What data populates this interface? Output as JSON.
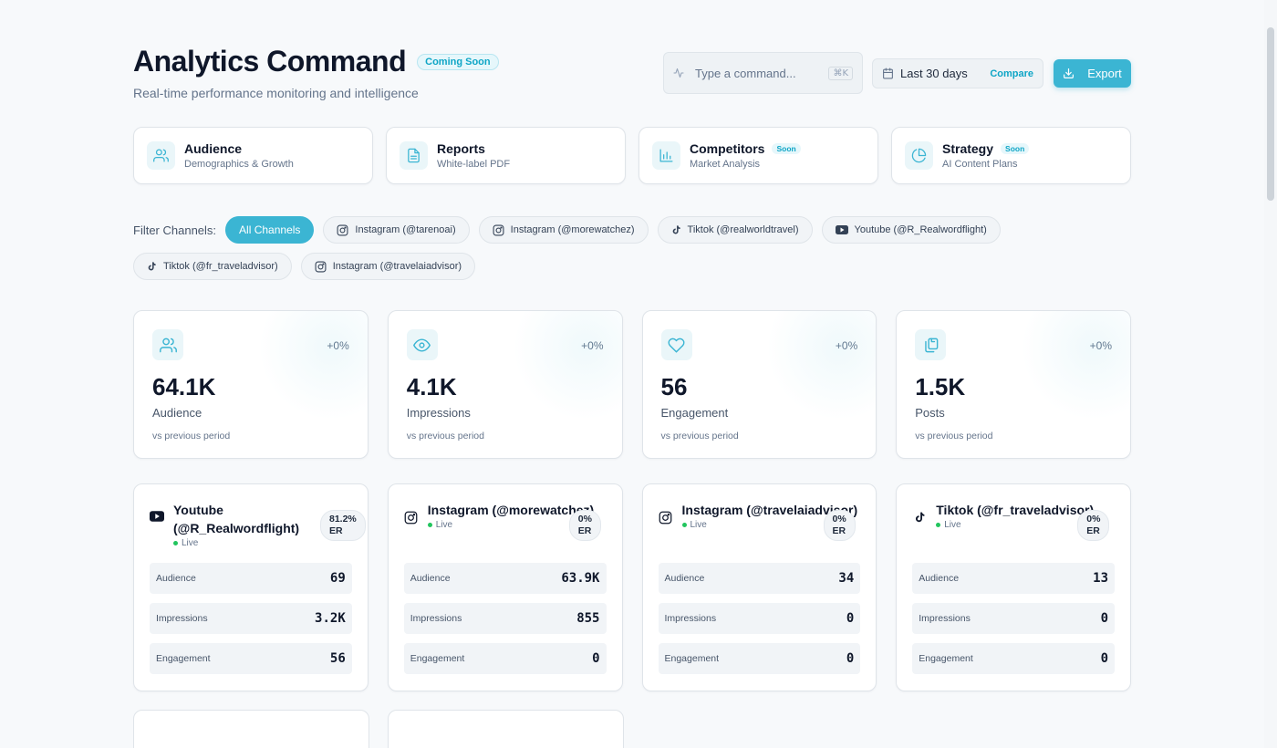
{
  "header": {
    "title": "Analytics Command",
    "badge": "Coming Soon",
    "subtitle": "Real-time performance monitoring and intelligence",
    "command_placeholder": "Type a command...",
    "command_shortcut": "⌘K",
    "date_range": "Last 30 days",
    "compare_label": "Compare",
    "export_label": "Export"
  },
  "nav_cards": [
    {
      "title": "Audience",
      "subtitle": "Demographics & Growth",
      "badge": "",
      "icon": "users-icon"
    },
    {
      "title": "Reports",
      "subtitle": "White-label PDF",
      "badge": "",
      "icon": "document-icon"
    },
    {
      "title": "Competitors",
      "subtitle": "Market Analysis",
      "badge": "Soon",
      "icon": "bar-chart-icon"
    },
    {
      "title": "Strategy",
      "subtitle": "AI Content Plans",
      "badge": "Soon",
      "icon": "pie-chart-icon"
    }
  ],
  "filters": {
    "label": "Filter Channels:",
    "chips": [
      {
        "label": "All Channels",
        "active": true
      },
      {
        "label": "Instagram (@tarenoai)",
        "icon": "instagram-icon"
      },
      {
        "label": "Instagram (@morewatchez)",
        "icon": "instagram-icon"
      },
      {
        "label": "Tiktok (@realworldtravel)",
        "icon": "tiktok-icon"
      },
      {
        "label": "Youtube (@R_Realwordflight)",
        "icon": "youtube-icon"
      },
      {
        "label": "Tiktok (@fr_traveladvisor)",
        "icon": "tiktok-icon"
      },
      {
        "label": "Instagram (@travelaiadvisor)",
        "icon": "instagram-icon"
      }
    ]
  },
  "stats": [
    {
      "value": "64.1K",
      "label": "Audience",
      "delta": "+0%",
      "note": "vs previous period",
      "icon": "users-icon"
    },
    {
      "value": "4.1K",
      "label": "Impressions",
      "delta": "+0%",
      "note": "vs previous period",
      "icon": "eye-icon"
    },
    {
      "value": "56",
      "label": "Engagement",
      "delta": "+0%",
      "note": "vs previous period",
      "icon": "heart-icon"
    },
    {
      "value": "1.5K",
      "label": "Posts",
      "delta": "+0%",
      "note": "vs previous period",
      "icon": "copy-icon"
    }
  ],
  "channels": [
    {
      "name": "Youtube (@R_Realwordflight)",
      "status": "Live",
      "er_value": "81.2%",
      "er_label": "ER",
      "icon": "youtube-icon",
      "metrics": [
        {
          "label": "Audience",
          "value": "69"
        },
        {
          "label": "Impressions",
          "value": "3.2K"
        },
        {
          "label": "Engagement",
          "value": "56"
        }
      ]
    },
    {
      "name": "Instagram (@morewatchez)",
      "status": "Live",
      "er_value": "0%",
      "er_label": "ER",
      "icon": "instagram-icon",
      "metrics": [
        {
          "label": "Audience",
          "value": "63.9K"
        },
        {
          "label": "Impressions",
          "value": "855"
        },
        {
          "label": "Engagement",
          "value": "0"
        }
      ]
    },
    {
      "name": "Instagram (@travelaiadvisor)",
      "status": "Live",
      "er_value": "0%",
      "er_label": "ER",
      "icon": "instagram-icon",
      "metrics": [
        {
          "label": "Audience",
          "value": "34"
        },
        {
          "label": "Impressions",
          "value": "0"
        },
        {
          "label": "Engagement",
          "value": "0"
        }
      ]
    },
    {
      "name": "Tiktok (@fr_traveladvisor)",
      "status": "Live",
      "er_value": "0%",
      "er_label": "ER",
      "icon": "tiktok-icon",
      "metrics": [
        {
          "label": "Audience",
          "value": "13"
        },
        {
          "label": "Impressions",
          "value": "0"
        },
        {
          "label": "Engagement",
          "value": "0"
        }
      ]
    }
  ],
  "colors": {
    "accent": "#3bb5d3",
    "accent_text": "#0ea5c6",
    "live": "#22c55e",
    "background": "#f7f9fb"
  }
}
